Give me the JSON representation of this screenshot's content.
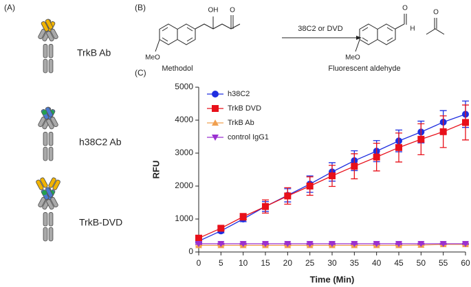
{
  "panels": {
    "a": "(A)",
    "b": "(B)",
    "c": "(C)"
  },
  "antibodies": [
    "TrkB Ab",
    "h38C2 Ab",
    "TrkB-DVD"
  ],
  "reaction": {
    "reagent": "38C2 or DVD",
    "substrate": "Methodol",
    "product": "Fluorescent aldehyde",
    "substrate_atoms": [
      "OH",
      "O",
      "MeO"
    ],
    "product_atoms": [
      "O",
      "H",
      "MeO",
      "O"
    ]
  },
  "chart_data": {
    "type": "line",
    "xlabel": "Time (Min)",
    "ylabel": "RFU",
    "x": [
      0,
      5,
      10,
      15,
      20,
      25,
      30,
      35,
      40,
      45,
      50,
      55,
      60
    ],
    "xlim": [
      0,
      60
    ],
    "xticks": [
      0,
      5,
      10,
      15,
      20,
      25,
      30,
      35,
      40,
      45,
      50,
      55,
      60
    ],
    "ylim": [
      0,
      5000
    ],
    "yticks": [
      0,
      1000,
      2000,
      3000,
      4000,
      5000
    ],
    "legend": "upper left",
    "series": [
      {
        "name": "h38C2",
        "color": "#1f2ee0",
        "marker": "circle",
        "values": [
          330,
          640,
          1000,
          1380,
          1720,
          2060,
          2430,
          2770,
          3060,
          3370,
          3640,
          3940,
          4180
        ],
        "errors": [
          50,
          60,
          80,
          150,
          200,
          250,
          280,
          300,
          320,
          330,
          330,
          350,
          400
        ]
      },
      {
        "name": "TrkB DVD",
        "color": "#e8101a",
        "marker": "square",
        "values": [
          420,
          720,
          1070,
          1380,
          1700,
          2000,
          2310,
          2600,
          2880,
          3170,
          3420,
          3650,
          3930
        ],
        "errors": [
          50,
          60,
          100,
          200,
          250,
          280,
          320,
          380,
          420,
          440,
          470,
          480,
          530
        ]
      },
      {
        "name": "TrkB Ab",
        "color": "#f0a050",
        "marker": "triangle-up",
        "values": [
          200,
          200,
          200,
          200,
          200,
          200,
          200,
          200,
          200,
          200,
          210,
          230,
          230
        ],
        "errors": [
          20,
          20,
          20,
          20,
          20,
          20,
          20,
          20,
          20,
          20,
          20,
          20,
          20
        ]
      },
      {
        "name": "control IgG1",
        "color": "#9a30d0",
        "marker": "triangle-down",
        "values": [
          250,
          250,
          250,
          250,
          250,
          250,
          250,
          250,
          250,
          250,
          250,
          250,
          250
        ],
        "errors": [
          20,
          20,
          20,
          20,
          20,
          20,
          20,
          20,
          20,
          20,
          20,
          20,
          20
        ]
      }
    ]
  }
}
